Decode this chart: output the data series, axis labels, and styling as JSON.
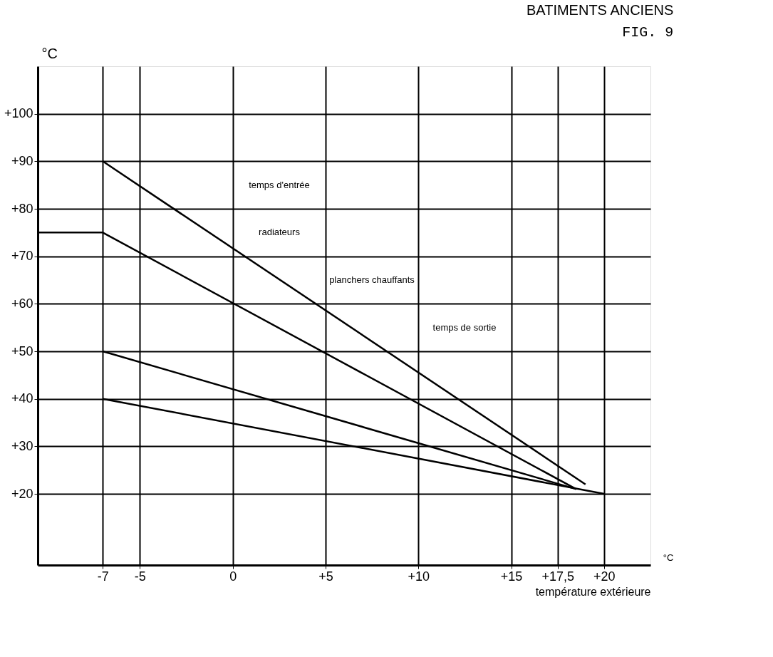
{
  "chart_data": {
    "type": "line",
    "title": "BATIMENTS ANCIENS",
    "subtitle": "FIG. 9",
    "xlabel": "température extérieure",
    "ylabel": "°C",
    "xlim": [
      -10.5,
      22.5
    ],
    "ylim": [
      5,
      110
    ],
    "xticks": [
      -7,
      -5,
      0,
      {
        "value": 5,
        "label": "+5"
      },
      {
        "value": 10,
        "label": "+10"
      },
      {
        "value": 15,
        "label": "+15"
      },
      {
        "value": 17.5,
        "label": "+17,5"
      },
      {
        "value": 20,
        "label": "+20"
      }
    ],
    "yticks": [
      {
        "value": 20,
        "label": "+20"
      },
      {
        "value": 30,
        "label": "+30"
      },
      {
        "value": 40,
        "label": "+40"
      },
      {
        "value": 50,
        "label": "+50"
      },
      {
        "value": 60,
        "label": "+60"
      },
      {
        "value": 70,
        "label": "+70"
      },
      {
        "value": 80,
        "label": "+80"
      },
      {
        "value": 90,
        "label": "+90"
      },
      {
        "value": 100,
        "label": "+100"
      }
    ],
    "series": [
      {
        "color": "#000000",
        "x": [
          -7,
          19
        ],
        "values": [
          90,
          22
        ]
      },
      {
        "color": "#000000",
        "x": [
          -10.5,
          -7,
          18.5
        ],
        "values": [
          75,
          75,
          21
        ]
      },
      {
        "color": "#000000",
        "x": [
          -7,
          18.5
        ],
        "values": [
          50,
          21
        ]
      },
      {
        "color": "#000000",
        "x": [
          -7,
          20
        ],
        "values": [
          40,
          20
        ]
      }
    ],
    "annotations": [
      "temps d'entrée",
      "radiateurs",
      "planchers chauffants",
      "temps de sortie",
      "°C"
    ],
    "grid": true,
    "marker": "none",
    "line_style": "solid",
    "legend": false
  }
}
